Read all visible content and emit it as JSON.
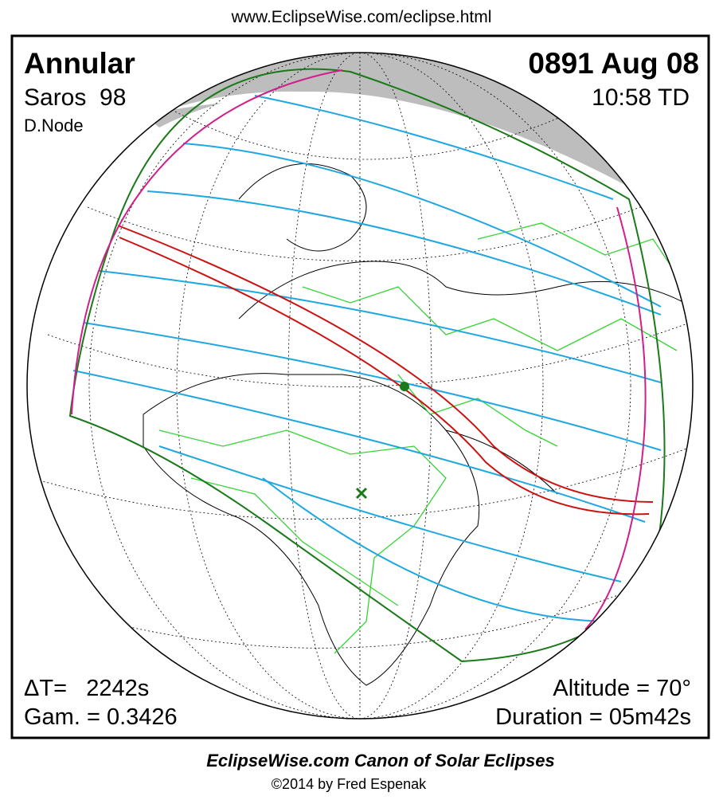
{
  "header": {
    "url": "www.EclipseWise.com/eclipse.html"
  },
  "panel": {
    "type": "Annular",
    "saros": "Saros  98",
    "node": "D.Node",
    "date": "0891 Aug 08",
    "time": "10:58 TD",
    "delta_t": "ΔT=   2242s",
    "gamma": "Gam. = 0.3426",
    "altitude": "Altitude = 70°",
    "duration": "Duration = 05m42s"
  },
  "footer": {
    "title": "EclipseWise.com Canon of Solar Eclipses",
    "credit": "©2014 by Fred Espenak"
  }
}
